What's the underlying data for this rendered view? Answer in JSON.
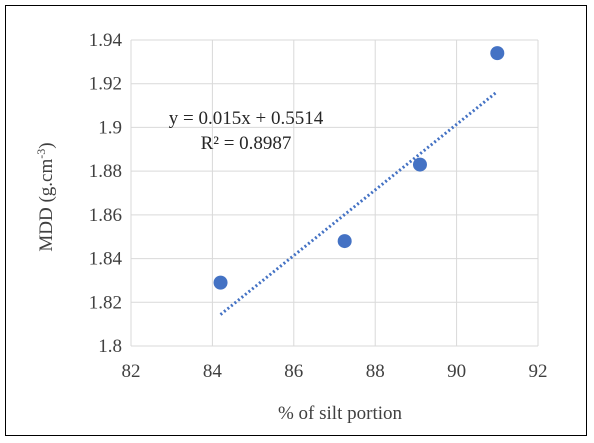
{
  "chart_data": {
    "type": "scatter",
    "title": "",
    "xlabel": "% of silt portion",
    "ylabel": "MDD (g.cm",
    "ylabel_superscript": "-3",
    "ylabel_suffix": ")",
    "xlim": [
      82,
      92
    ],
    "ylim": [
      1.8,
      1.94
    ],
    "x_ticks": [
      82,
      84,
      86,
      88,
      90,
      92
    ],
    "y_ticks": [
      1.8,
      1.82,
      1.84,
      1.86,
      1.88,
      1.9,
      1.92,
      1.94
    ],
    "x_tick_labels": [
      "82",
      "84",
      "86",
      "88",
      "90",
      "92"
    ],
    "y_tick_labels": [
      "1.8",
      "1.82",
      "1.84",
      "1.86",
      "1.88",
      "1.9",
      "1.92",
      "1.94"
    ],
    "grid": true,
    "legend": "none",
    "series": [
      {
        "x": [
          84.2,
          87.25,
          89.1,
          91.0
        ],
        "y": [
          1.829,
          1.848,
          1.883,
          1.934
        ],
        "color": "#4472C4"
      }
    ],
    "trendline": {
      "type": "linear",
      "slope": 0.015,
      "intercept": 0.5514,
      "x_range": [
        84.2,
        91.0
      ],
      "color": "#4472C4",
      "style": "dotted",
      "equation_label": "y = 0.015x + 0.5514",
      "r2_label": "R² = 0.8987"
    },
    "colors": {
      "grid": "#D9D9D9",
      "text": "#404040",
      "frame": "#000000"
    }
  }
}
